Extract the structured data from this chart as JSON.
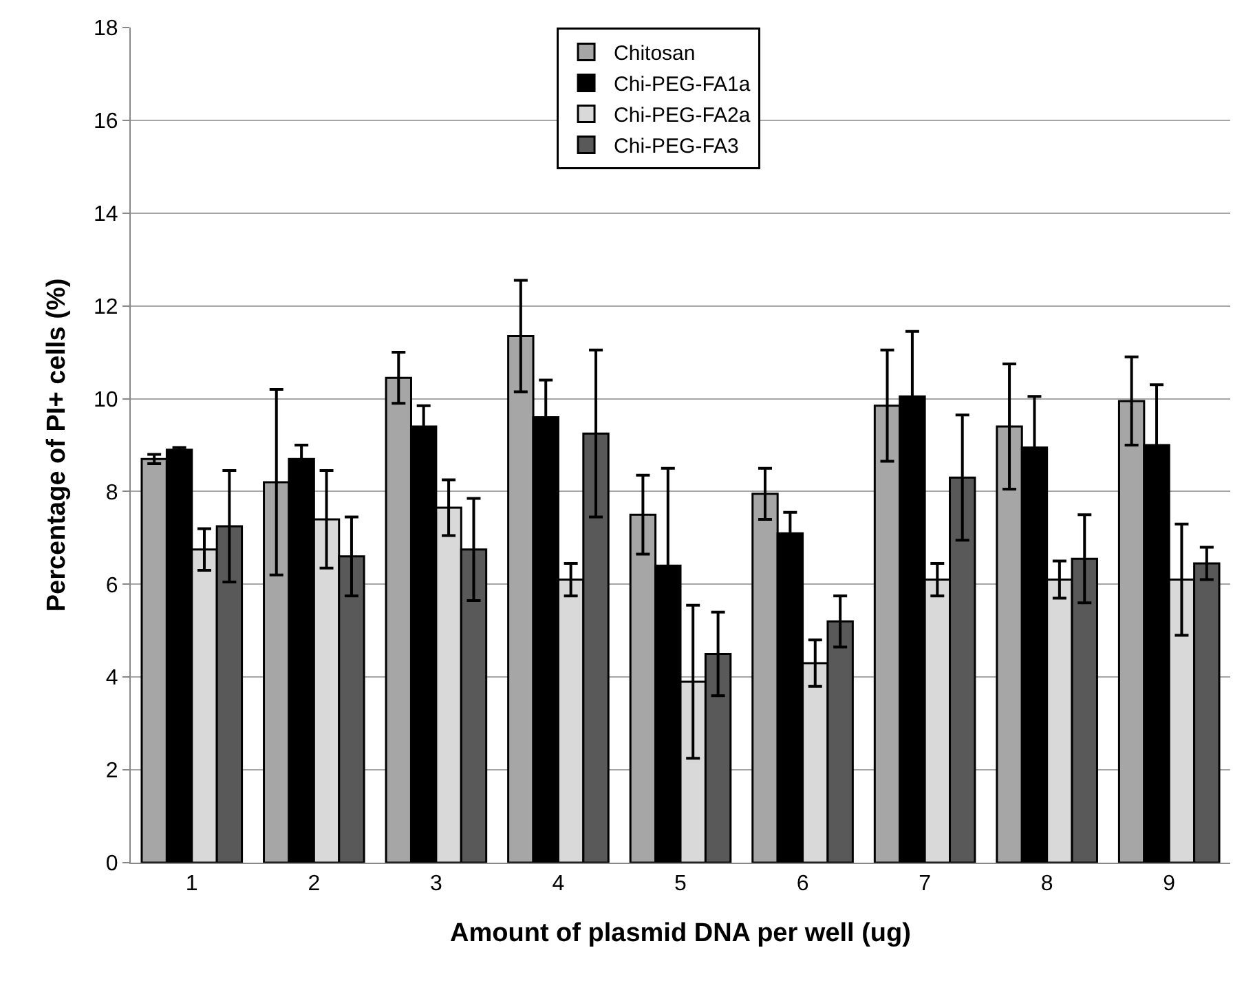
{
  "chart_data": {
    "type": "bar",
    "xlabel": "Amount of plasmid DNA per well (ug)",
    "ylabel": "Percentage of PI+ cells (%)",
    "categories": [
      "1",
      "2",
      "3",
      "4",
      "5",
      "6",
      "7",
      "8",
      "9"
    ],
    "series": [
      {
        "name": "Chitosan",
        "color": "#a6a6a6",
        "values": [
          8.7,
          8.2,
          10.45,
          11.35,
          7.5,
          7.95,
          9.85,
          9.4,
          9.95
        ],
        "errors": [
          0.1,
          2.0,
          0.55,
          1.2,
          0.85,
          0.55,
          1.2,
          1.35,
          0.95
        ]
      },
      {
        "name": "Chi-PEG-FA1a",
        "color": "#000000",
        "values": [
          8.9,
          8.7,
          9.4,
          9.6,
          6.4,
          7.1,
          10.05,
          8.95,
          9.0
        ],
        "errors": [
          0.05,
          0.3,
          0.45,
          0.8,
          2.1,
          0.45,
          1.4,
          1.1,
          1.3
        ]
      },
      {
        "name": "Chi-PEG-FA2a",
        "color": "#d9d9d9",
        "values": [
          6.75,
          7.4,
          7.65,
          6.1,
          3.9,
          4.3,
          6.1,
          6.1,
          6.1
        ],
        "errors": [
          0.45,
          1.05,
          0.6,
          0.35,
          1.65,
          0.5,
          0.35,
          0.4,
          1.2
        ]
      },
      {
        "name": "Chi-PEG-FA3",
        "color": "#595959",
        "values": [
          7.25,
          6.6,
          6.75,
          9.25,
          4.5,
          5.2,
          8.3,
          6.55,
          6.45
        ],
        "errors": [
          1.2,
          0.85,
          1.1,
          1.8,
          0.9,
          0.55,
          1.35,
          0.95,
          0.35
        ]
      }
    ],
    "ylim": [
      0,
      18
    ],
    "yticks": [
      0,
      2,
      4,
      6,
      8,
      10,
      12,
      14,
      16,
      18
    ],
    "grid": "y",
    "legend": "top"
  }
}
